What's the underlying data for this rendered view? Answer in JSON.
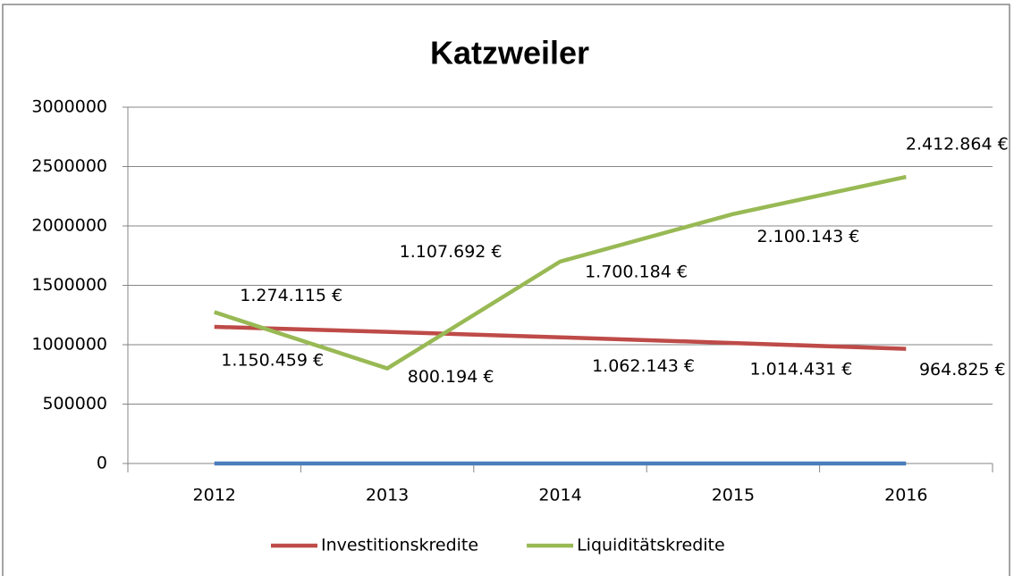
{
  "chart_data": {
    "type": "line",
    "title": "Katzweiler",
    "categories": [
      "2012",
      "2013",
      "2014",
      "2015",
      "2016"
    ],
    "series": [
      {
        "name": "Investitionskredite",
        "color": "#be4b48",
        "values": [
          1150459,
          1107692,
          1062143,
          1014431,
          964825
        ],
        "value_labels": [
          "1.150.459 €",
          "1.107.692 €",
          "1.062.143 €",
          "1.014.431 €",
          "964.825 €"
        ]
      },
      {
        "name": "Liquiditätskredite",
        "color": "#98b954",
        "values": [
          1274115,
          800194,
          1700184,
          2100143,
          2412864
        ],
        "value_labels": [
          "1.274.115 €",
          "800.194 €",
          "1.700.184 €",
          "2.100.143 €",
          "2.412.864 €"
        ]
      },
      {
        "color": "#4a7ebb",
        "values": [
          0,
          0,
          0,
          0,
          0
        ]
      }
    ],
    "ylim": [
      0,
      3000000
    ],
    "yticks": [
      0,
      500000,
      1000000,
      1500000,
      2000000,
      2500000,
      3000000
    ],
    "grid": true,
    "legend": "bottom"
  }
}
